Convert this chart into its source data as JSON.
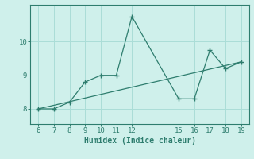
{
  "xlabel": "Humidex (Indice chaleur)",
  "x_data": [
    6,
    7,
    8,
    9,
    10,
    11,
    12,
    15,
    16,
    17,
    18,
    19
  ],
  "y_data": [
    8.0,
    8.0,
    8.2,
    8.8,
    9.0,
    9.0,
    10.75,
    8.3,
    8.3,
    9.75,
    9.2,
    9.4
  ],
  "trend_x": [
    6,
    19
  ],
  "trend_y": [
    8.0,
    9.4
  ],
  "line_color": "#2e7d6e",
  "bg_color": "#cff0eb",
  "grid_color": "#aaddd7",
  "axis_color": "#2e7d6e",
  "xlim": [
    5.5,
    19.5
  ],
  "ylim": [
    7.55,
    11.1
  ],
  "yticks": [
    8,
    9,
    10
  ],
  "xticks": [
    6,
    7,
    8,
    9,
    10,
    11,
    12,
    15,
    16,
    17,
    18,
    19
  ]
}
